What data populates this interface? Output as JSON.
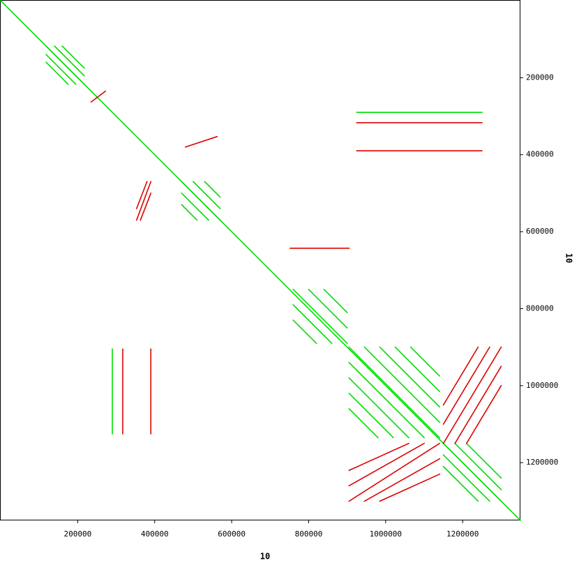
{
  "chart_data": {
    "type": "dotplot",
    "xlabel": "10",
    "ylabel": "10",
    "xlim": [
      0,
      1350000
    ],
    "ylim": [
      0,
      1350000
    ],
    "xticks": [
      200000,
      400000,
      600000,
      800000,
      1000000,
      1200000
    ],
    "yticks": [
      200000,
      400000,
      600000,
      800000,
      1000000,
      1200000
    ],
    "forward_color": "#00dd00",
    "reverse_color": "#dd0000",
    "forward": [
      [
        0,
        0,
        1350000,
        1350000
      ],
      [
        118000,
        118000,
        217000,
        217000
      ],
      [
        140000,
        118000,
        217000,
        195000
      ],
      [
        118000,
        140000,
        195000,
        217000
      ],
      [
        160000,
        118000,
        217000,
        175000
      ],
      [
        118000,
        160000,
        175000,
        217000
      ],
      [
        470000,
        470000,
        570000,
        570000
      ],
      [
        500000,
        470000,
        570000,
        540000
      ],
      [
        470000,
        500000,
        540000,
        570000
      ],
      [
        530000,
        470000,
        570000,
        510000
      ],
      [
        470000,
        530000,
        510000,
        570000
      ],
      [
        760000,
        750000,
        900000,
        890000
      ],
      [
        800000,
        750000,
        900000,
        850000
      ],
      [
        760000,
        790000,
        860000,
        890000
      ],
      [
        840000,
        750000,
        900000,
        810000
      ],
      [
        760000,
        830000,
        820000,
        890000
      ],
      [
        905000,
        900000,
        1140000,
        1135000
      ],
      [
        945000,
        900000,
        1140000,
        1095000
      ],
      [
        985000,
        900000,
        1140000,
        1055000
      ],
      [
        1025000,
        900000,
        1140000,
        1015000
      ],
      [
        1065000,
        900000,
        1140000,
        975000
      ],
      [
        905000,
        940000,
        1100000,
        1135000
      ],
      [
        905000,
        980000,
        1060000,
        1135000
      ],
      [
        905000,
        1020000,
        1020000,
        1135000
      ],
      [
        905000,
        1060000,
        980000,
        1135000
      ],
      [
        1150000,
        1150000,
        1300000,
        1300000
      ],
      [
        1180000,
        1150000,
        1300000,
        1270000
      ],
      [
        1210000,
        1150000,
        1300000,
        1240000
      ],
      [
        1150000,
        1180000,
        1270000,
        1300000
      ],
      [
        1150000,
        1210000,
        1240000,
        1300000
      ],
      [
        925000,
        290000,
        1250000,
        290000
      ],
      [
        290000,
        905000,
        290000,
        1125000
      ]
    ],
    "reverse": [
      [
        905000,
        1300000,
        1140000,
        1150000
      ],
      [
        905000,
        1260000,
        1100000,
        1150000
      ],
      [
        945000,
        1300000,
        1140000,
        1190000
      ],
      [
        905000,
        1220000,
        1060000,
        1150000
      ],
      [
        985000,
        1300000,
        1140000,
        1230000
      ],
      [
        1150000,
        1150000,
        1300000,
        900000
      ],
      [
        1150000,
        1100000,
        1270000,
        900000
      ],
      [
        1180000,
        1150000,
        1300000,
        950000
      ],
      [
        1150000,
        1050000,
        1240000,
        900000
      ],
      [
        1210000,
        1150000,
        1300000,
        1000000
      ],
      [
        353000,
        570000,
        390000,
        470000
      ],
      [
        353000,
        540000,
        380000,
        470000
      ],
      [
        363000,
        570000,
        390000,
        500000
      ],
      [
        925000,
        317000,
        1250000,
        317000
      ],
      [
        925000,
        390000,
        1250000,
        390000
      ],
      [
        752000,
        643000,
        905000,
        643000
      ],
      [
        317000,
        905000,
        317000,
        1125000
      ],
      [
        390000,
        905000,
        390000,
        1125000
      ],
      [
        480000,
        380000,
        562000,
        353000
      ],
      [
        235000,
        263000,
        272000,
        235000
      ]
    ]
  }
}
